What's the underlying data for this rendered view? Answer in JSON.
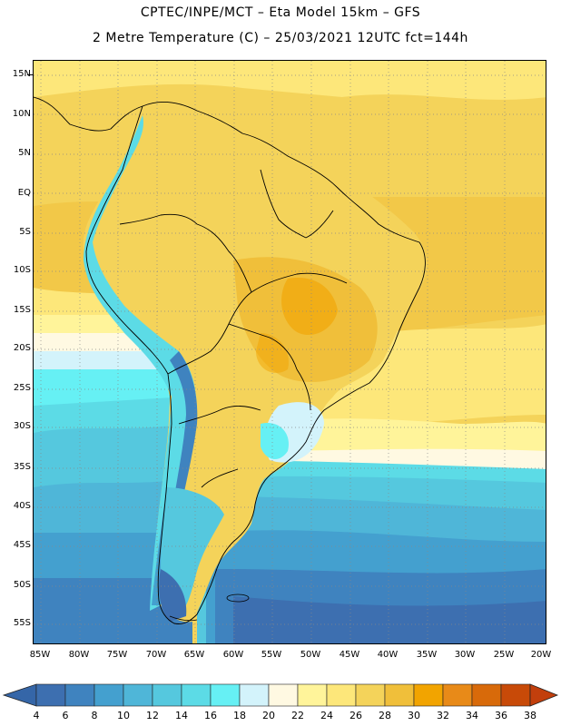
{
  "title_line1": "CPTEC/INPE/MCT –  Eta Model 15km – GFS",
  "title_line2": "2 Metre Temperature (C) – 25/03/2021 12UTC fct=144h",
  "y_labels": [
    "15N",
    "10N",
    "5N",
    "EQ",
    "5S",
    "10S",
    "15S",
    "20S",
    "25S",
    "30S",
    "35S",
    "40S",
    "45S",
    "50S",
    "55S"
  ],
  "x_labels": [
    "85W",
    "80W",
    "75W",
    "70W",
    "65W",
    "60W",
    "55W",
    "50W",
    "45W",
    "40W",
    "35W",
    "30W",
    "25W",
    "20W"
  ],
  "colorbar": {
    "labels": [
      "4",
      "6",
      "8",
      "10",
      "12",
      "14",
      "16",
      "18",
      "20",
      "22",
      "24",
      "26",
      "28",
      "30",
      "32",
      "34",
      "36",
      "38"
    ],
    "colors": [
      "#3d6fb0",
      "#3f83bf",
      "#44a0cf",
      "#4fb6d8",
      "#55c8de",
      "#5cdbe6",
      "#66f0f4",
      "#d3f3fb",
      "#fff9e2",
      "#fff49a",
      "#fde77a",
      "#f4d35a",
      "#f0bf3a",
      "#f2a400",
      "#e88a18",
      "#d86a0a",
      "#c84a08"
    ],
    "low_color": "#3566a8",
    "high_color": "#c23f0c"
  }
}
